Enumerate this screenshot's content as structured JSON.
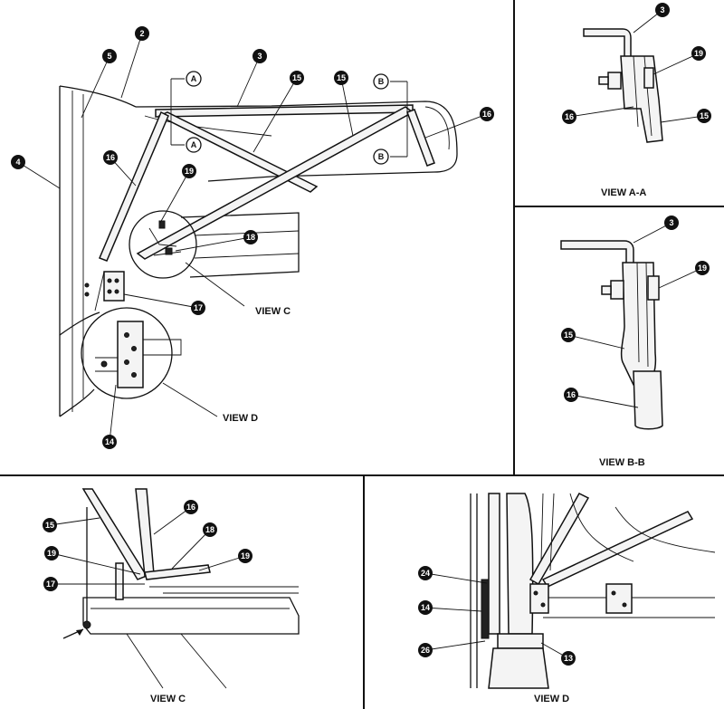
{
  "callouts": {
    "main": {
      "c2": "2",
      "c3": "3",
      "c4": "4",
      "c5": "5",
      "c14": "14",
      "c15a": "15",
      "c15b": "15",
      "c16a": "16",
      "c16b": "16",
      "c17": "17",
      "c18": "18",
      "c19": "19"
    },
    "view_aa": {
      "c3": "3",
      "c19": "19",
      "c16": "16",
      "c15": "15"
    },
    "view_bb": {
      "c3": "3",
      "c19": "19",
      "c15": "15",
      "c16": "16"
    },
    "view_c": {
      "c15": "15",
      "c16": "16",
      "c18": "18",
      "c19a": "19",
      "c19b": "19",
      "c17": "17"
    },
    "view_d": {
      "c24": "24",
      "c14": "14",
      "c26": "26",
      "c13": "13"
    }
  },
  "section_markers": {
    "a_top": "A",
    "a_bottom": "A",
    "b_top": "B",
    "b_bottom": "B"
  },
  "captions": {
    "main_view_c": "VIEW C",
    "main_view_d": "VIEW D",
    "view_aa": "VIEW A-A",
    "view_bb": "VIEW B-B",
    "view_c": "VIEW C",
    "view_d": "VIEW D"
  }
}
